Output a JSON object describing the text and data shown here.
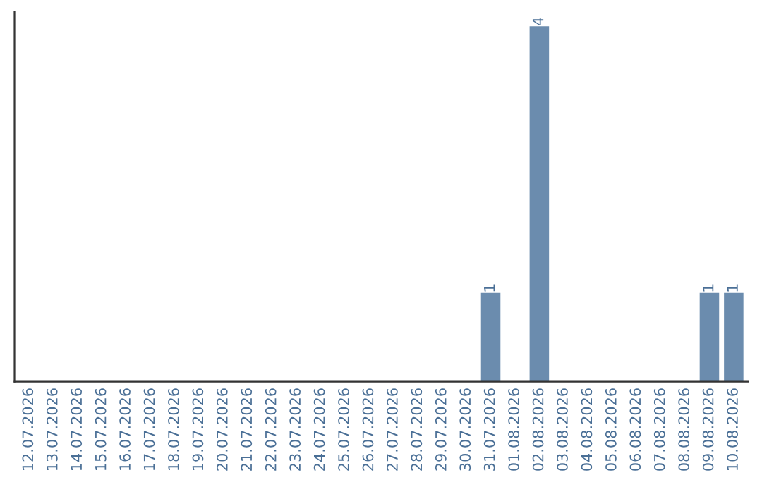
{
  "chart_data": {
    "type": "bar",
    "categories": [
      "12.07.2026",
      "13.07.2026",
      "14.07.2026",
      "15.07.2026",
      "16.07.2026",
      "17.07.2026",
      "18.07.2026",
      "19.07.2026",
      "20.07.2026",
      "21.07.2026",
      "22.07.2026",
      "23.07.2026",
      "24.07.2026",
      "25.07.2026",
      "26.07.2026",
      "27.07.2026",
      "28.07.2026",
      "29.07.2026",
      "30.07.2026",
      "31.07.2026",
      "01.08.2026",
      "02.08.2026",
      "03.08.2026",
      "04.08.2026",
      "05.08.2026",
      "06.08.2026",
      "07.08.2026",
      "08.08.2026",
      "09.08.2026",
      "10.08.2026"
    ],
    "values": [
      null,
      null,
      null,
      null,
      null,
      null,
      null,
      null,
      null,
      null,
      null,
      null,
      null,
      null,
      null,
      null,
      null,
      null,
      null,
      1,
      null,
      4,
      null,
      null,
      null,
      null,
      null,
      null,
      1,
      1
    ],
    "value_labels": [
      null,
      null,
      null,
      null,
      null,
      null,
      null,
      null,
      null,
      null,
      null,
      null,
      null,
      null,
      null,
      null,
      null,
      null,
      null,
      "1",
      null,
      "4",
      null,
      null,
      null,
      null,
      null,
      null,
      "1",
      "1"
    ],
    "color": "#6b8cae",
    "tick_labels": "x",
    "grid": false,
    "legend": false
  }
}
